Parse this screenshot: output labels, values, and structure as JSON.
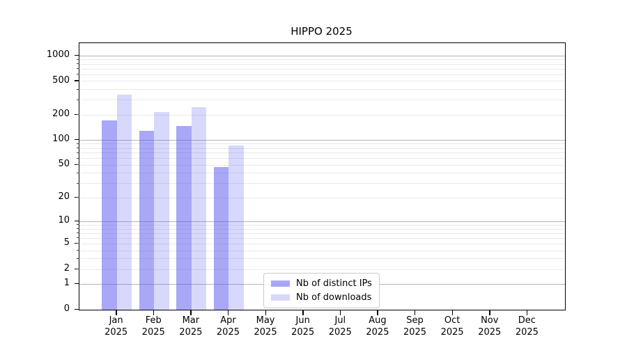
{
  "figure": {
    "background": "#ffffff"
  },
  "chart_data": {
    "type": "bar",
    "title": "HIPPO 2025",
    "year_label": "2025",
    "categories": [
      "Jan",
      "Feb",
      "Mar",
      "Apr",
      "May",
      "Jun",
      "Jul",
      "Aug",
      "Sep",
      "Oct",
      "Nov",
      "Dec"
    ],
    "series": [
      {
        "name": "Nb of distinct IPs",
        "color": "rgba(85,85,240,0.51)",
        "values": [
          172,
          129,
          148,
          48,
          null,
          null,
          null,
          null,
          null,
          null,
          null,
          null
        ]
      },
      {
        "name": "Nb of downloads",
        "color": "rgba(85,85,240,0.23)",
        "values": [
          345,
          216,
          246,
          87,
          null,
          null,
          null,
          null,
          null,
          null,
          null,
          null
        ]
      }
    ],
    "y_ticks": [
      0,
      1,
      2,
      5,
      10,
      20,
      50,
      100,
      200,
      500,
      1000
    ],
    "y_scale": "log10(1+y)",
    "y_max": 1415,
    "ylim": [
      0,
      1415
    ],
    "grid": {
      "major_values": [
        1,
        10,
        100,
        1000
      ],
      "minor_values": [
        2,
        3,
        4,
        5,
        6,
        7,
        8,
        9,
        20,
        30,
        40,
        50,
        60,
        70,
        80,
        90,
        200,
        300,
        400,
        500,
        600,
        700,
        800,
        900
      ],
      "major_color": "#b4b4b4",
      "minor_color": "#e9e9e9"
    },
    "legend": {
      "position": "lower center"
    },
    "colors": {
      "bar_base": "#5555f0",
      "axis": "#000000"
    }
  }
}
